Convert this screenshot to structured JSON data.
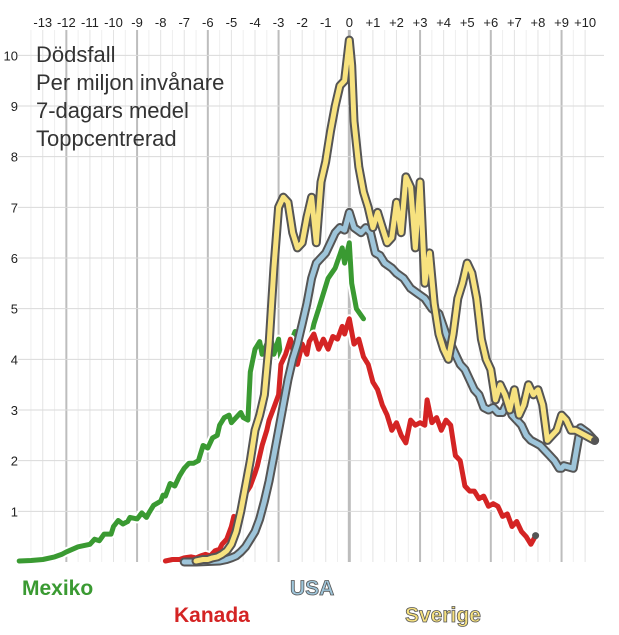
{
  "chart_data": {
    "type": "line",
    "title_lines": [
      "Dödsfall",
      "Per miljon invånare",
      "7-dagars medel",
      "Toppcentrerad"
    ],
    "x_unit": "weeks relative to peak",
    "x_ticks": [
      "-13",
      "-12",
      "-11",
      "-10",
      "-9",
      "-8",
      "-7",
      "-6",
      "-5",
      "-4",
      "-3",
      "-2",
      "-1",
      "0",
      "+1",
      "+2",
      "+3",
      "+4",
      "+5",
      "+6",
      "+7",
      "+8",
      "+9",
      "+10"
    ],
    "y_ticks": [
      "1",
      "2",
      "3",
      "4",
      "5",
      "6",
      "7",
      "8",
      "9",
      "10"
    ],
    "xlim": [
      -14.05,
      10.8
    ],
    "ylim": [
      0,
      10.5
    ],
    "grid": true,
    "legend": "bottom, labels colored by series",
    "series": [
      {
        "name": "Mexiko",
        "color": "#3a9a32",
        "outline": "#ffffff",
        "x": [
          -14.0,
          -13.5,
          -13.0,
          -12.5,
          -12.2,
          -12.0,
          -11.5,
          -11.0,
          -10.8,
          -10.6,
          -10.4,
          -10.1,
          -10.0,
          -9.8,
          -9.6,
          -9.4,
          -9.3,
          -9.0,
          -8.8,
          -8.6,
          -8.5,
          -8.3,
          -8.0,
          -7.9,
          -7.8,
          -7.6,
          -7.4,
          -7.2,
          -7.0,
          -6.8,
          -6.6,
          -6.4,
          -6.2,
          -6.0,
          -5.8,
          -5.6,
          -5.5,
          -5.3,
          -5.1,
          -5.0,
          -4.8,
          -4.6,
          -4.5,
          -4.3,
          -4.2,
          -4.0,
          -3.8,
          -3.7,
          -3.5,
          -3.4,
          -3.3,
          -3.2,
          -3.0,
          -2.9,
          -2.7,
          -2.5,
          -2.3,
          -2.1,
          -2.0,
          -1.8,
          -1.6,
          -1.5,
          -1.3,
          -1.1,
          -0.9,
          -0.6,
          -0.3,
          -0.2,
          0.0,
          0.1,
          0.3,
          0.6
        ],
        "y": [
          0.02,
          0.03,
          0.05,
          0.1,
          0.15,
          0.2,
          0.3,
          0.35,
          0.45,
          0.42,
          0.55,
          0.55,
          0.7,
          0.82,
          0.75,
          0.8,
          0.88,
          0.85,
          0.97,
          0.88,
          0.97,
          1.12,
          1.2,
          1.32,
          1.3,
          1.55,
          1.5,
          1.7,
          1.85,
          1.95,
          1.95,
          2.0,
          2.3,
          2.25,
          2.45,
          2.5,
          2.7,
          2.85,
          2.9,
          2.75,
          2.85,
          2.95,
          2.85,
          2.8,
          3.75,
          4.2,
          4.35,
          4.1,
          4.3,
          3.9,
          4.35,
          4.1,
          4.4,
          4.0,
          4.1,
          4.3,
          4.55,
          4.3,
          4.1,
          4.3,
          4.5,
          4.7,
          5.0,
          5.3,
          5.6,
          5.8,
          6.2,
          5.9,
          6.3,
          5.5,
          5.0,
          4.8
        ]
      },
      {
        "name": "Kanada",
        "color": "#d42424",
        "outline": "#ffffff",
        "x": [
          -7.8,
          -7.5,
          -7.2,
          -7.0,
          -6.7,
          -6.5,
          -6.3,
          -6.1,
          -5.9,
          -5.7,
          -5.5,
          -5.4,
          -5.2,
          -5.0,
          -4.9,
          -4.7,
          -4.5,
          -4.4,
          -4.2,
          -4.0,
          -3.9,
          -3.7,
          -3.5,
          -3.4,
          -3.2,
          -3.0,
          -2.9,
          -2.7,
          -2.5,
          -2.4,
          -2.2,
          -2.0,
          -1.8,
          -1.7,
          -1.5,
          -1.3,
          -1.1,
          -0.9,
          -0.7,
          -0.5,
          -0.3,
          -0.2,
          0.0,
          0.2,
          0.4,
          0.6,
          0.8,
          1.0,
          1.2,
          1.4,
          1.6,
          1.8,
          2.0,
          2.2,
          2.4,
          2.6,
          2.8,
          3.0,
          3.2,
          3.3,
          3.5,
          3.7,
          3.9,
          4.1,
          4.3,
          4.5,
          4.7,
          4.9,
          5.1,
          5.3,
          5.5,
          5.7,
          5.9,
          6.1,
          6.3,
          6.5,
          6.7,
          6.9,
          7.1,
          7.3,
          7.5,
          7.7,
          7.9
        ],
        "y": [
          0.02,
          0.05,
          0.05,
          0.08,
          0.1,
          0.08,
          0.12,
          0.15,
          0.12,
          0.22,
          0.25,
          0.35,
          0.45,
          0.7,
          0.9,
          0.8,
          1.2,
          1.35,
          1.5,
          1.75,
          1.9,
          2.3,
          2.6,
          2.8,
          3.05,
          3.3,
          3.9,
          4.1,
          4.4,
          4.2,
          3.9,
          4.3,
          4.1,
          4.35,
          4.5,
          4.2,
          4.4,
          4.2,
          4.45,
          4.4,
          4.65,
          4.5,
          4.8,
          4.3,
          4.4,
          4.05,
          3.9,
          3.55,
          3.4,
          3.1,
          2.9,
          2.6,
          2.75,
          2.5,
          2.35,
          2.8,
          2.7,
          2.75,
          2.7,
          3.2,
          2.75,
          2.85,
          2.6,
          2.8,
          2.7,
          2.1,
          2.0,
          1.5,
          1.4,
          1.4,
          1.25,
          1.3,
          1.1,
          1.15,
          1.1,
          0.9,
          0.95,
          0.7,
          0.8,
          0.6,
          0.5,
          0.35,
          0.52
        ]
      },
      {
        "name": "USA",
        "color": "#9ec5da",
        "outline": "#555555",
        "x": [
          -7.0,
          -6.5,
          -6.0,
          -5.5,
          -5.2,
          -5.0,
          -4.8,
          -4.6,
          -4.4,
          -4.2,
          -4.0,
          -3.8,
          -3.6,
          -3.4,
          -3.2,
          -3.0,
          -2.8,
          -2.6,
          -2.4,
          -2.2,
          -2.0,
          -1.8,
          -1.6,
          -1.4,
          -1.2,
          -1.0,
          -0.8,
          -0.6,
          -0.4,
          -0.2,
          0.0,
          0.2,
          0.5,
          0.7,
          0.9,
          1.1,
          1.3,
          1.5,
          1.8,
          2.0,
          2.3,
          2.6,
          2.9,
          3.2,
          3.5,
          3.8,
          4.1,
          4.3,
          4.5,
          4.7,
          4.9,
          5.1,
          5.3,
          5.5,
          5.7,
          5.9,
          6.1,
          6.3,
          6.5,
          6.7,
          6.9,
          7.1,
          7.3,
          7.5,
          7.7,
          7.9,
          8.1,
          8.3,
          8.5,
          8.7,
          8.9,
          9.0,
          9.1,
          9.5,
          9.8,
          10.1,
          10.4
        ],
        "y": [
          0.0,
          0.0,
          0.01,
          0.02,
          0.05,
          0.08,
          0.12,
          0.2,
          0.3,
          0.45,
          0.6,
          0.85,
          1.2,
          1.6,
          2.1,
          2.6,
          3.1,
          3.6,
          4.0,
          4.3,
          4.7,
          5.1,
          5.6,
          5.9,
          6.0,
          6.1,
          6.3,
          6.5,
          6.6,
          6.55,
          6.9,
          6.6,
          6.5,
          6.6,
          6.5,
          6.1,
          6.05,
          5.9,
          5.8,
          5.7,
          5.6,
          5.4,
          5.3,
          5.2,
          5.0,
          4.9,
          4.5,
          4.3,
          4.1,
          3.9,
          3.8,
          3.6,
          3.4,
          3.3,
          3.05,
          3.0,
          3.05,
          2.95,
          2.95,
          3.15,
          2.9,
          2.8,
          2.7,
          2.5,
          2.4,
          2.35,
          2.3,
          2.2,
          2.1,
          2.0,
          1.85,
          1.85,
          1.9,
          1.85,
          2.65,
          2.55,
          2.4
        ]
      },
      {
        "name": "Sverige",
        "color": "#f7e27f",
        "outline": "#555555",
        "x": [
          -6.5,
          -6.2,
          -6.0,
          -5.8,
          -5.6,
          -5.4,
          -5.2,
          -5.0,
          -4.8,
          -4.6,
          -4.4,
          -4.2,
          -4.0,
          -3.8,
          -3.6,
          -3.4,
          -3.2,
          -3.0,
          -2.8,
          -2.6,
          -2.4,
          -2.2,
          -2.0,
          -1.8,
          -1.6,
          -1.4,
          -1.2,
          -1.0,
          -0.8,
          -0.6,
          -0.4,
          -0.2,
          0.0,
          0.1,
          0.2,
          0.4,
          0.6,
          0.8,
          1.0,
          1.2,
          1.4,
          1.6,
          1.8,
          2.0,
          2.2,
          2.4,
          2.6,
          2.8,
          3.0,
          3.2,
          3.4,
          3.6,
          3.8,
          4.0,
          4.2,
          4.4,
          4.6,
          4.8,
          5.0,
          5.2,
          5.4,
          5.6,
          5.8,
          6.0,
          6.2,
          6.4,
          6.6,
          6.8,
          7.0,
          7.2,
          7.4,
          7.6,
          7.8,
          8.0,
          8.2,
          8.4,
          8.6,
          8.8,
          9.0,
          9.2,
          9.4,
          9.6,
          9.8,
          10.0,
          10.2,
          10.4
        ],
        "y": [
          0.02,
          0.05,
          0.05,
          0.08,
          0.1,
          0.15,
          0.22,
          0.35,
          0.6,
          1.0,
          1.5,
          2.0,
          2.6,
          2.9,
          3.3,
          4.3,
          5.8,
          7.0,
          7.2,
          7.1,
          6.5,
          6.2,
          6.3,
          6.8,
          7.2,
          6.3,
          7.5,
          7.9,
          8.5,
          9.0,
          9.4,
          9.5,
          10.3,
          9.8,
          8.7,
          7.8,
          7.3,
          7.0,
          6.6,
          6.9,
          6.6,
          6.3,
          6.4,
          7.1,
          6.5,
          7.6,
          7.4,
          6.2,
          7.5,
          5.5,
          6.1,
          5.1,
          4.5,
          4.2,
          4.0,
          4.5,
          5.2,
          5.5,
          5.9,
          5.7,
          5.2,
          4.4,
          4.0,
          3.8,
          3.2,
          3.5,
          3.3,
          3.0,
          3.4,
          2.9,
          3.1,
          3.5,
          3.3,
          3.4,
          3.1,
          2.4,
          2.5,
          2.6,
          2.9,
          2.8,
          2.6,
          2.6,
          2.55,
          2.5,
          2.45,
          2.4
        ]
      }
    ]
  }
}
